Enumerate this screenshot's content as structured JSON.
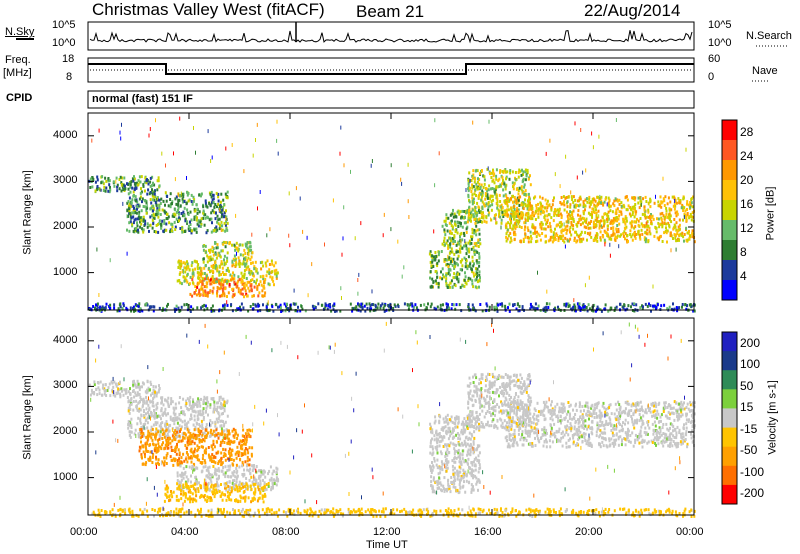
{
  "header": {
    "station": "Christmas Valley West (fitACF)",
    "beam": "Beam 21",
    "date": "22/Aug/2014"
  },
  "top_panels": {
    "nsky_label": "N.Sky",
    "nsearch_label": "N.Search",
    "noise_ticks": [
      "10^5",
      "10^0"
    ],
    "freq_label": "Freq.",
    "freq_unit": "[MHz]",
    "freq_ticks": [
      "18",
      "8"
    ],
    "nave_label": "Nave",
    "nave_ticks": [
      "60",
      "0"
    ],
    "cpid_label": "CPID",
    "cpid_value": "normal (fast) 151 IF"
  },
  "colors": {
    "power_scale": [
      "#0000ff",
      "#1c3a9c",
      "#2e7d32",
      "#66bb6a",
      "#c8d400",
      "#ffc107",
      "#ff9800",
      "#ff5722",
      "#ff0000"
    ],
    "velocity_scale": [
      "#ff0000",
      "#ff6f00",
      "#ffa000",
      "#ffc400",
      "#c8c8c8",
      "#7cd03c",
      "#2e8b57",
      "#1a3a8a",
      "#2020c0"
    ]
  },
  "chart_data": [
    {
      "type": "heatmap",
      "panel": "power",
      "ylabel": "Slant Range [km]",
      "xlabel": "Time UT",
      "x_ticks": [
        "00:00",
        "04:00",
        "08:00",
        "12:00",
        "16:00",
        "20:00",
        "00:00"
      ],
      "y_ticks": [
        1000,
        2000,
        3000,
        4000
      ],
      "ylim": [
        180,
        4500
      ],
      "xlim_hours": [
        0,
        24
      ],
      "colorbar": {
        "label": "Power [dB]",
        "ticks": [
          4,
          8,
          12,
          16,
          20,
          24,
          28
        ],
        "range": [
          0,
          30
        ]
      },
      "echo_regions": [
        {
          "t": [
            0.0,
            2.8
          ],
          "range": [
            2800,
            3150
          ],
          "level": 10
        },
        {
          "t": [
            1.5,
            5.5
          ],
          "range": [
            1900,
            2800
          ],
          "level": 10
        },
        {
          "t": [
            4.5,
            6.5
          ],
          "range": [
            1300,
            1700
          ],
          "level": 14
        },
        {
          "t": [
            3.5,
            7.5
          ],
          "range": [
            750,
            1300
          ],
          "level": 16
        },
        {
          "t": [
            4.0,
            7.0
          ],
          "range": [
            500,
            900
          ],
          "level": 22
        },
        {
          "t": [
            14.0,
            15.5
          ],
          "range": [
            1500,
            2400
          ],
          "level": 12
        },
        {
          "t": [
            13.5,
            15.5
          ],
          "range": [
            700,
            1500
          ],
          "level": 12
        },
        {
          "t": [
            15.0,
            17.5
          ],
          "range": [
            2100,
            3300
          ],
          "level": 14
        },
        {
          "t": [
            16.5,
            24.0
          ],
          "range": [
            1700,
            2700
          ],
          "level": 18
        },
        {
          "t": [
            0.0,
            24.0
          ],
          "range": [
            180,
            350
          ],
          "level": 6
        }
      ]
    },
    {
      "type": "heatmap",
      "panel": "velocity",
      "ylabel": "Slant Range [km]",
      "xlabel": "Time UT",
      "x_ticks": [
        "00:00",
        "04:00",
        "08:00",
        "12:00",
        "16:00",
        "20:00",
        "00:00"
      ],
      "y_ticks": [
        1000,
        2000,
        3000,
        4000
      ],
      "ylim": [
        180,
        4500
      ],
      "xlim_hours": [
        0,
        24
      ],
      "colorbar": {
        "label": "Velocity [m s-1]",
        "ticks": [
          200,
          100,
          50,
          15,
          -15,
          -50,
          -100,
          -200
        ],
        "range": [
          -250,
          250
        ]
      },
      "echo_regions": [
        {
          "t": [
            0.0,
            2.8
          ],
          "range": [
            2800,
            3150
          ],
          "vel": 0
        },
        {
          "t": [
            1.5,
            5.5
          ],
          "range": [
            1900,
            2800
          ],
          "vel": 0
        },
        {
          "t": [
            2.0,
            6.5
          ],
          "range": [
            1300,
            2100
          ],
          "vel": -120
        },
        {
          "t": [
            3.5,
            7.5
          ],
          "range": [
            750,
            1300
          ],
          "vel": 0
        },
        {
          "t": [
            3.0,
            7.0
          ],
          "range": [
            500,
            900
          ],
          "vel": -60
        },
        {
          "t": [
            13.5,
            15.5
          ],
          "range": [
            700,
            2400
          ],
          "vel": 0
        },
        {
          "t": [
            15.0,
            17.5
          ],
          "range": [
            2100,
            3300
          ],
          "vel": 0
        },
        {
          "t": [
            16.5,
            24.0
          ],
          "range": [
            1700,
            2700
          ],
          "vel": 0
        },
        {
          "t": [
            0.0,
            24.0
          ],
          "range": [
            180,
            350
          ],
          "vel": -50
        }
      ]
    }
  ]
}
